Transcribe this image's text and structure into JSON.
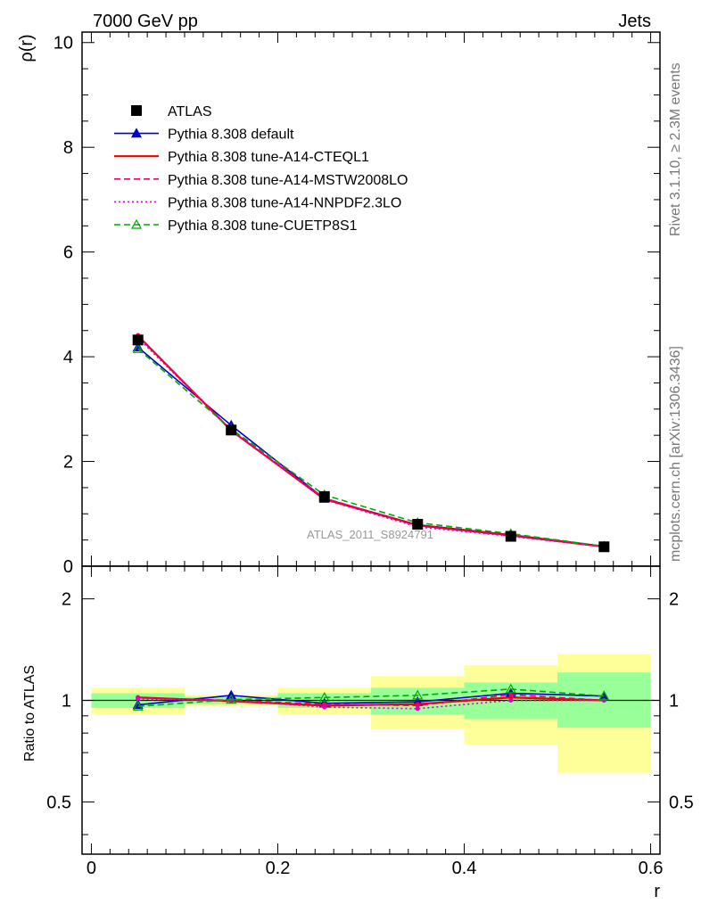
{
  "header": {
    "left": "7000 GeV pp",
    "right": "Jets"
  },
  "side_labels": {
    "rivet": "Rivet 3.1.10, ≥ 2.3M events",
    "mcplots": "mcplots.cern.ch [arXiv:1306.3436]"
  },
  "watermark": "ATLAS_2011_S8924791",
  "chart_data": [
    {
      "type": "line",
      "panel": "main",
      "ylabel": "ρ(r)",
      "xlim": [
        -0.01,
        0.61
      ],
      "ylim": [
        0,
        10.2
      ],
      "yticks": [
        0,
        2,
        4,
        6,
        8,
        10
      ],
      "x": [
        0.05,
        0.15,
        0.25,
        0.35,
        0.45,
        0.55
      ],
      "series": [
        {
          "name": "ATLAS",
          "style": "data",
          "color": "#000000",
          "values": [
            4.32,
            2.6,
            1.33,
            0.8,
            0.57,
            0.37
          ]
        },
        {
          "name": "Pythia 8.308 default",
          "style": "solid",
          "marker": "triangle-filled",
          "color": "#0000cc",
          "values": [
            4.18,
            2.69,
            1.29,
            0.79,
            0.6,
            0.38
          ]
        },
        {
          "name": "Pythia 8.308 tune-A14-CTEQL1",
          "style": "solid",
          "color": "#ee0000",
          "values": [
            4.4,
            2.59,
            1.28,
            0.78,
            0.59,
            0.37
          ]
        },
        {
          "name": "Pythia 8.308 tune-A14-MSTW2008LO",
          "style": "dashed",
          "color": "#ee0066",
          "values": [
            4.41,
            2.6,
            1.3,
            0.77,
            0.58,
            0.37
          ]
        },
        {
          "name": "Pythia 8.308 tune-A14-NNPDF2.3LO",
          "style": "dotted",
          "color": "#dd00cc",
          "values": [
            4.36,
            2.6,
            1.27,
            0.75,
            0.57,
            0.37
          ]
        },
        {
          "name": "Pythia 8.308 tune-CUETP8S1",
          "style": "dashed",
          "marker": "triangle-open",
          "color": "#00aa00",
          "values": [
            4.15,
            2.62,
            1.36,
            0.83,
            0.62,
            0.38
          ]
        }
      ]
    },
    {
      "type": "line",
      "panel": "ratio",
      "ylabel": "Ratio to ATLAS",
      "xlabel": "r",
      "xlim": [
        -0.01,
        0.61
      ],
      "ylim": [
        0.35,
        2.5
      ],
      "scale": "log",
      "yticks": [
        0.5,
        1,
        2
      ],
      "xticks": [
        0,
        0.2,
        0.4,
        0.6
      ],
      "bands": [
        {
          "x": [
            0.0,
            0.1
          ],
          "stat": [
            0.95,
            1.05
          ],
          "total": [
            0.91,
            1.09
          ]
        },
        {
          "x": [
            0.1,
            0.2
          ],
          "stat": [
            0.975,
            1.025
          ],
          "total": [
            0.96,
            1.04
          ]
        },
        {
          "x": [
            0.2,
            0.3
          ],
          "stat": [
            0.95,
            1.05
          ],
          "total": [
            0.91,
            1.09
          ]
        },
        {
          "x": [
            0.3,
            0.4
          ],
          "stat": [
            0.91,
            1.09
          ],
          "total": [
            0.82,
            1.18
          ]
        },
        {
          "x": [
            0.4,
            0.5
          ],
          "stat": [
            0.88,
            1.13
          ],
          "total": [
            0.74,
            1.27
          ]
        },
        {
          "x": [
            0.5,
            0.6
          ],
          "stat": [
            0.83,
            1.21
          ],
          "total": [
            0.61,
            1.37
          ]
        }
      ],
      "x": [
        0.05,
        0.15,
        0.25,
        0.35,
        0.45,
        0.55
      ],
      "series": [
        {
          "name": "Pythia 8.308 default",
          "style": "solid",
          "marker": "triangle-filled",
          "color": "#0000cc",
          "values": [
            0.97,
            1.035,
            0.98,
            0.99,
            1.05,
            1.03
          ]
        },
        {
          "name": "Pythia 8.308 tune-A14-CTEQL1",
          "style": "solid",
          "color": "#ee0000",
          "values": [
            1.02,
            0.995,
            0.965,
            0.975,
            1.02,
            1.0
          ]
        },
        {
          "name": "Pythia 8.308 tune-A14-MSTW2008LO",
          "style": "dashed",
          "color": "#ee0066",
          "values": [
            1.02,
            1.0,
            0.975,
            0.965,
            1.04,
            1.0
          ]
        },
        {
          "name": "Pythia 8.308 tune-A14-NNPDF2.3LO",
          "style": "dotted",
          "color": "#dd00cc",
          "values": [
            1.01,
            1.0,
            0.955,
            0.945,
            1.0,
            1.0
          ]
        },
        {
          "name": "Pythia 8.308 tune-CUETP8S1",
          "style": "dashed",
          "marker": "triangle-open",
          "color": "#00aa00",
          "values": [
            0.96,
            1.005,
            1.02,
            1.035,
            1.08,
            1.03
          ]
        }
      ]
    }
  ],
  "colors": {
    "stat_band": "#99ff99",
    "total_band": "#ffff99"
  }
}
